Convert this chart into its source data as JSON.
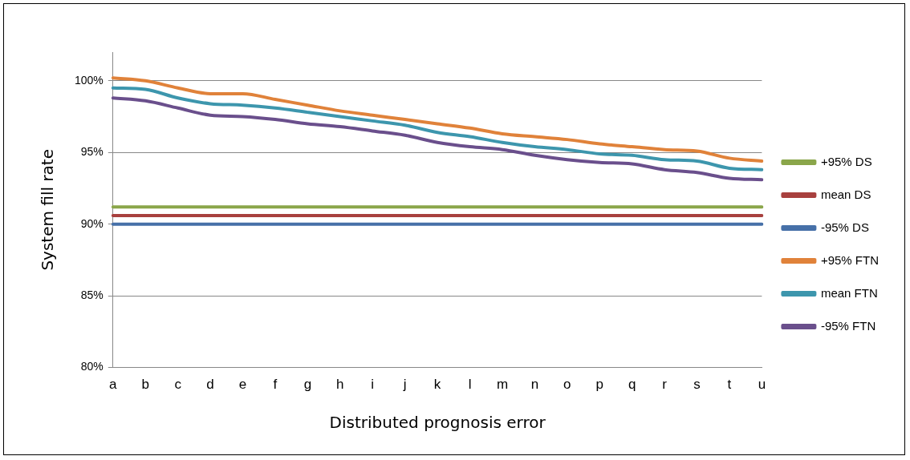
{
  "chart_data": {
    "type": "line",
    "xlabel": "Distributed prognosis error",
    "ylabel": "System fill rate",
    "categories": [
      "a",
      "b",
      "c",
      "d",
      "e",
      "f",
      "g",
      "h",
      "i",
      "j",
      "k",
      "l",
      "m",
      "n",
      "o",
      "p",
      "q",
      "r",
      "s",
      "t",
      "u"
    ],
    "series": [
      {
        "name": "+95% DS",
        "color": "#8aa64a",
        "values": [
          91.2,
          91.2,
          91.2,
          91.2,
          91.2,
          91.2,
          91.2,
          91.2,
          91.2,
          91.2,
          91.2,
          91.2,
          91.2,
          91.2,
          91.2,
          91.2,
          91.2,
          91.2,
          91.2,
          91.2,
          91.2
        ]
      },
      {
        "name": "mean DS",
        "color": "#a8403e",
        "values": [
          90.6,
          90.6,
          90.6,
          90.6,
          90.6,
          90.6,
          90.6,
          90.6,
          90.6,
          90.6,
          90.6,
          90.6,
          90.6,
          90.6,
          90.6,
          90.6,
          90.6,
          90.6,
          90.6,
          90.6,
          90.6
        ]
      },
      {
        "name": "-95% DS",
        "color": "#4670a8",
        "values": [
          90,
          90,
          90,
          90,
          90,
          90,
          90,
          90,
          90,
          90,
          90,
          90,
          90,
          90,
          90,
          90,
          90,
          90,
          90,
          90,
          90
        ]
      },
      {
        "name": "+95% FTN",
        "color": "#e0823a",
        "values": [
          100.2,
          100,
          99.5,
          99.1,
          99.1,
          98.7,
          98.3,
          97.9,
          97.6,
          97.3,
          97,
          96.7,
          96.3,
          96.1,
          95.9,
          95.6,
          95.4,
          95.2,
          95.1,
          94.6,
          94.4
        ]
      },
      {
        "name": "mean FTN",
        "color": "#3d96ad",
        "values": [
          99.5,
          99.4,
          98.8,
          98.4,
          98.3,
          98.1,
          97.8,
          97.5,
          97.2,
          96.9,
          96.4,
          96.1,
          95.7,
          95.4,
          95.2,
          94.9,
          94.8,
          94.5,
          94.4,
          93.9,
          93.8
        ]
      },
      {
        "name": "-95% FTN",
        "color": "#6a4f8c",
        "values": [
          98.8,
          98.6,
          98.1,
          97.6,
          97.5,
          97.3,
          97,
          96.8,
          96.5,
          96.2,
          95.7,
          95.4,
          95.2,
          94.8,
          94.5,
          94.3,
          94.2,
          93.8,
          93.6,
          93.2,
          93.1
        ]
      }
    ],
    "ylim": [
      80,
      102
    ],
    "yticks": [
      {
        "value": 80,
        "label": "80%"
      },
      {
        "value": 85,
        "label": "85%"
      },
      {
        "value": 90,
        "label": "90%"
      },
      {
        "value": 95,
        "label": "95%"
      },
      {
        "value": 100,
        "label": "100%"
      }
    ],
    "grid": "y",
    "legend": "right",
    "marker": "none",
    "line_style": "solid"
  }
}
